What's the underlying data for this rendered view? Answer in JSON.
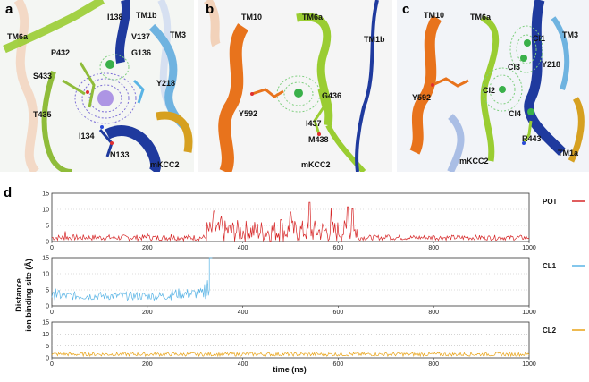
{
  "panels": {
    "a": {
      "letter": "a",
      "labels": {
        "tm6a": "TM6a",
        "i138": "I138",
        "tm1b": "TM1b",
        "v137": "V137",
        "tm3": "TM3",
        "g136": "G136",
        "p432": "P432",
        "s433": "S433",
        "y218": "Y218",
        "t435": "T435",
        "i134": "I134",
        "n133": "N133",
        "mkcc2": "mKCC2"
      }
    },
    "b": {
      "letter": "b",
      "labels": {
        "tm10": "TM10",
        "tm6a": "TM6a",
        "tm1b": "TM1b",
        "y592": "Y592",
        "g436": "G436",
        "i437": "I437",
        "m438": "M438",
        "mkcc2": "mKCC2"
      }
    },
    "c": {
      "letter": "c",
      "labels": {
        "tm10": "TM10",
        "tm6a": "TM6a",
        "tm3": "TM3",
        "cl1": "Cl1",
        "cl3": "Cl3",
        "y218": "Y218",
        "cl2": "Cl2",
        "y592": "Y592",
        "cl4": "Cl4",
        "r443": "R443",
        "tm1a": "TM1a",
        "mkcc2": "mKCC2"
      }
    },
    "d": {
      "letter": "d"
    }
  },
  "chart_data": {
    "type": "line",
    "xlabel": "time (ns)",
    "ylabel_line1": "Distance",
    "ylabel_line2": "ion binding site (Å)",
    "xlim": [
      0,
      1000
    ],
    "ylim": [
      0,
      15
    ],
    "xticks": [
      "0",
      "200",
      "400",
      "600",
      "800",
      "1000"
    ],
    "yticks": [
      "0",
      "5",
      "10",
      "15"
    ],
    "grid": "dotted horizontal",
    "series": [
      {
        "name": "POT",
        "color": "#d62728",
        "segments": [
          {
            "x0": 0,
            "x1": 325,
            "base": 1.2,
            "noise": 0.9,
            "spikes": [
              [
                28,
                3.2
              ],
              [
                200,
                2.6
              ],
              [
                250,
                2.2
              ]
            ]
          },
          {
            "x0": 325,
            "x1": 640,
            "base": 3.2,
            "noise": 3.5,
            "spikes": [
              [
                340,
                9.5
              ],
              [
                355,
                8.0
              ],
              [
                480,
                6.8
              ],
              [
                500,
                9.2
              ],
              [
                540,
                12.2
              ],
              [
                585,
                10.5
              ],
              [
                620,
                10.8
              ],
              [
                630,
                10.2
              ]
            ]
          },
          {
            "x0": 640,
            "x1": 1000,
            "base": 1.2,
            "noise": 0.8,
            "spikes": [
              [
                705,
                2.0
              ],
              [
                800,
                1.8
              ],
              [
                900,
                1.7
              ]
            ]
          }
        ]
      },
      {
        "name": "CL1",
        "color": "#5ab4e5",
        "segments": [
          {
            "x0": 0,
            "x1": 250,
            "base": 3.1,
            "noise": 1.3,
            "spikes": [
              [
                8,
                5.4
              ],
              [
                15,
                4.8
              ]
            ]
          },
          {
            "x0": 250,
            "x1": 330,
            "base": 3.8,
            "noise": 1.7,
            "spikes": [
              [
                320,
                6.5
              ],
              [
                326,
                8.0
              ]
            ]
          },
          {
            "x0": 330,
            "x1": 336,
            "base": 15,
            "noise": 0,
            "spikes": []
          }
        ]
      },
      {
        "name": "CL2",
        "color": "#e8a317",
        "segments": [
          {
            "x0": 0,
            "x1": 1000,
            "base": 1.5,
            "noise": 0.8,
            "spikes": []
          }
        ]
      }
    ]
  }
}
